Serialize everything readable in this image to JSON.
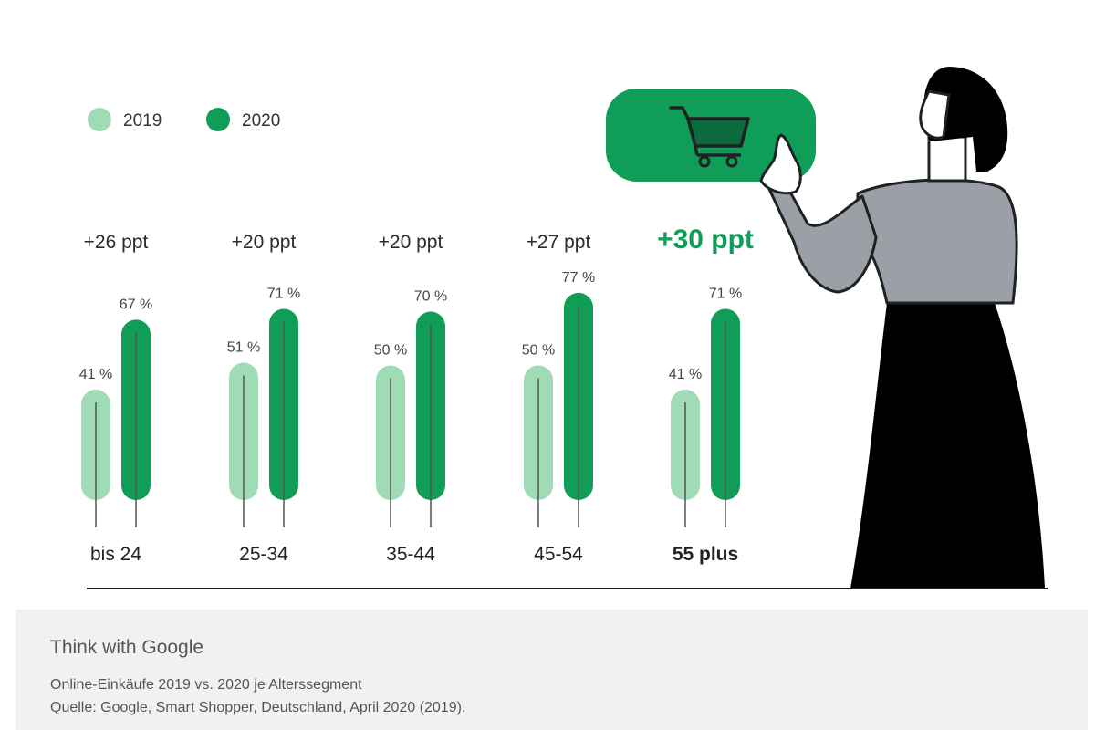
{
  "chart_data": {
    "type": "bar",
    "categories": [
      "bis 24",
      "25-34",
      "35-44",
      "45-54",
      "55 plus"
    ],
    "series": [
      {
        "name": "2019",
        "values": [
          41,
          51,
          50,
          50,
          41
        ],
        "labels": [
          "41 %",
          "51 %",
          "50 %",
          "50 %",
          "41 %"
        ],
        "color": "#9fdbb5"
      },
      {
        "name": "2020",
        "values": [
          67,
          71,
          70,
          77,
          71
        ],
        "labels": [
          "67 %",
          "71 %",
          "70 %",
          "77 %",
          "71 %"
        ],
        "color": "#0f9d58"
      }
    ],
    "annotations": [
      "+26 ppt",
      "+20 ppt",
      "+20 ppt",
      "+27 ppt",
      "+30 ppt"
    ],
    "highlight_category": "55 plus",
    "legend": {
      "placement": "top-left",
      "entries": [
        "2019",
        "2020"
      ]
    },
    "title": "",
    "xlabel": "",
    "ylabel": "",
    "grid": false
  },
  "footer": {
    "brand": "Think with Google",
    "caption_line1": "Online-Einkäufe 2019 vs. 2020 je Alterssegment",
    "caption_line2": "Quelle: Google, Smart Shopper, Deutschland, April 2020 (2019)."
  },
  "illustration": {
    "figure": "woman-pointing",
    "icon": "shopping-cart-icon",
    "colors": {
      "accent": "#0f9d58",
      "sweater": "#9aa0a6",
      "skirt": "#000000"
    }
  }
}
